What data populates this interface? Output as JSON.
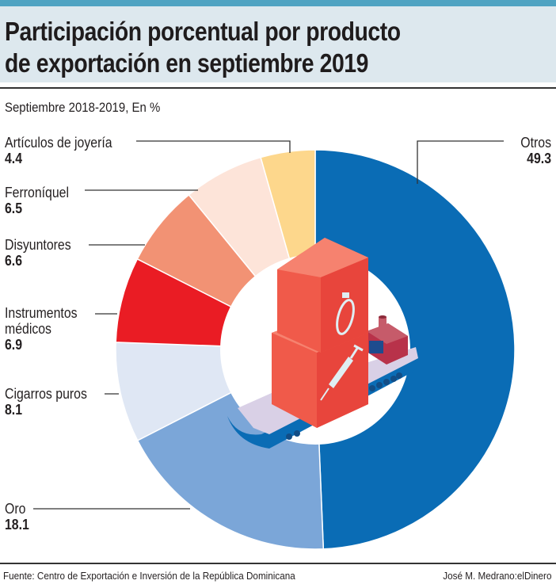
{
  "header": {
    "title_line1": "Participación porcentual por producto",
    "title_line2": "de exportación en septiembre 2019",
    "subtitle": "Septiembre 2018-2019, En %"
  },
  "footer": {
    "source": "Fuente: Centro de Exportación e Inversión de la República Dominicana",
    "credit": "José M. Medrano:elDinero"
  },
  "illustration": {
    "icons": [
      "cargo-ship-icon",
      "container-icon",
      "ring-icon",
      "syringe-icon"
    ]
  },
  "chart_data": {
    "type": "pie",
    "donut": true,
    "title": "Participación porcentual por producto de exportación en septiembre 2019",
    "subtitle": "Septiembre 2018-2019, En %",
    "start": "top",
    "direction": "clockwise",
    "slices": [
      {
        "label": "Otros",
        "value": 49.3,
        "display": "49.3",
        "color": "#0a6cb5"
      },
      {
        "label": "Oro",
        "value": 18.1,
        "display": "18.1",
        "color": "#7ba6d8"
      },
      {
        "label": "Cigarros puros",
        "value": 8.1,
        "display": "8.1",
        "color": "#dfe7f4"
      },
      {
        "label": "Instrumentos médicos",
        "value": 6.9,
        "display": "6.9",
        "color": "#ea1c24"
      },
      {
        "label": "Disyuntores",
        "value": 6.6,
        "display": "6.6",
        "color": "#f29274"
      },
      {
        "label": "Ferroníquel",
        "value": 6.5,
        "display": "6.5",
        "color": "#fde4d9"
      },
      {
        "label": "Artículos de joyería",
        "value": 4.4,
        "display": "4.4",
        "color": "#fdd78c"
      }
    ],
    "label_lines": {
      "Otros": [
        "Otros"
      ],
      "Oro": [
        "Oro"
      ],
      "Cigarros puros": [
        "Cigarros puros"
      ],
      "Instrumentos médicos": [
        "Instrumentos",
        "médicos"
      ],
      "Disyuntores": [
        "Disyuntores"
      ],
      "Ferroníquel": [
        "Ferroníquel"
      ],
      "Artículos de joyería": [
        "Artículos de joyería"
      ]
    }
  }
}
